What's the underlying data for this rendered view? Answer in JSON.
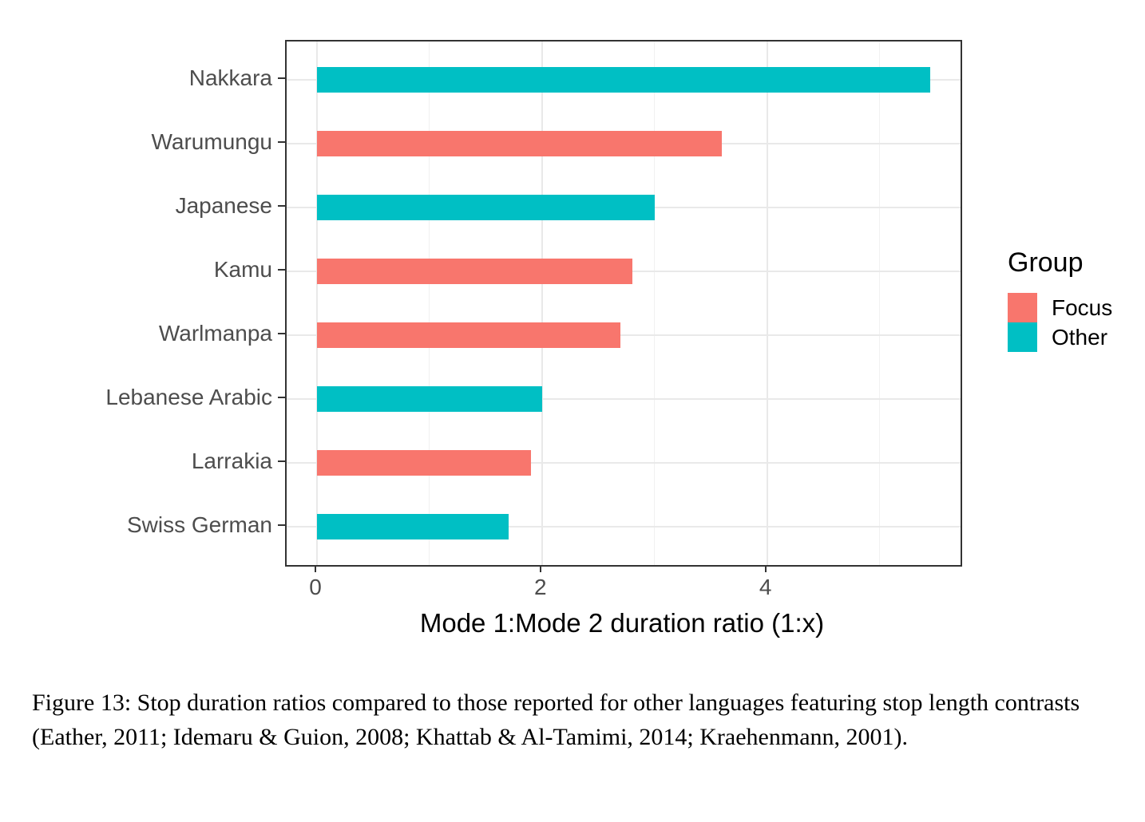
{
  "chart_data": {
    "type": "bar",
    "orientation": "horizontal",
    "categories": [
      "Nakkara",
      "Warumungu",
      "Japanese",
      "Kamu",
      "Warlmanpa",
      "Lebanese Arabic",
      "Larrakia",
      "Swiss German"
    ],
    "values": [
      5.45,
      3.6,
      3.0,
      2.8,
      2.7,
      2.0,
      1.9,
      1.7
    ],
    "groups": [
      "Other",
      "Focus",
      "Other",
      "Focus",
      "Focus",
      "Other",
      "Focus",
      "Other"
    ],
    "series": [
      {
        "name": "Focus",
        "points": [
          [
            "Warumungu",
            3.6
          ],
          [
            "Kamu",
            2.8
          ],
          [
            "Warlmanpa",
            2.7
          ],
          [
            "Larrakia",
            1.9
          ]
        ]
      },
      {
        "name": "Other",
        "points": [
          [
            "Nakkara",
            5.45
          ],
          [
            "Japanese",
            3.0
          ],
          [
            "Lebanese Arabic",
            2.0
          ],
          [
            "Swiss German",
            1.7
          ]
        ]
      }
    ],
    "title": "",
    "xlabel": "Mode 1:Mode 2 duration ratio (1:x)",
    "ylabel": "",
    "xlim": [
      -0.27,
      5.72
    ],
    "x_major_ticks": [
      0,
      2,
      4
    ],
    "x_minor_gridlines": [
      1,
      3,
      5
    ],
    "grid": "on",
    "colors": {
      "Focus": "#F8766D",
      "Other": "#00BFC4"
    },
    "legend": {
      "position": "right",
      "title": "Group",
      "entries": [
        {
          "label": "Focus",
          "color": "#F8766D"
        },
        {
          "label": "Other",
          "color": "#00BFC4"
        }
      ]
    }
  },
  "caption": {
    "text": "Figure 13: Stop duration ratios  compared to those reported for other languages featuring stop length contrasts (Eather, 2011; Idemaru & Guion, 2008; Khattab & Al-Tamimi, 2014; Kraehenmann, 2001)."
  }
}
